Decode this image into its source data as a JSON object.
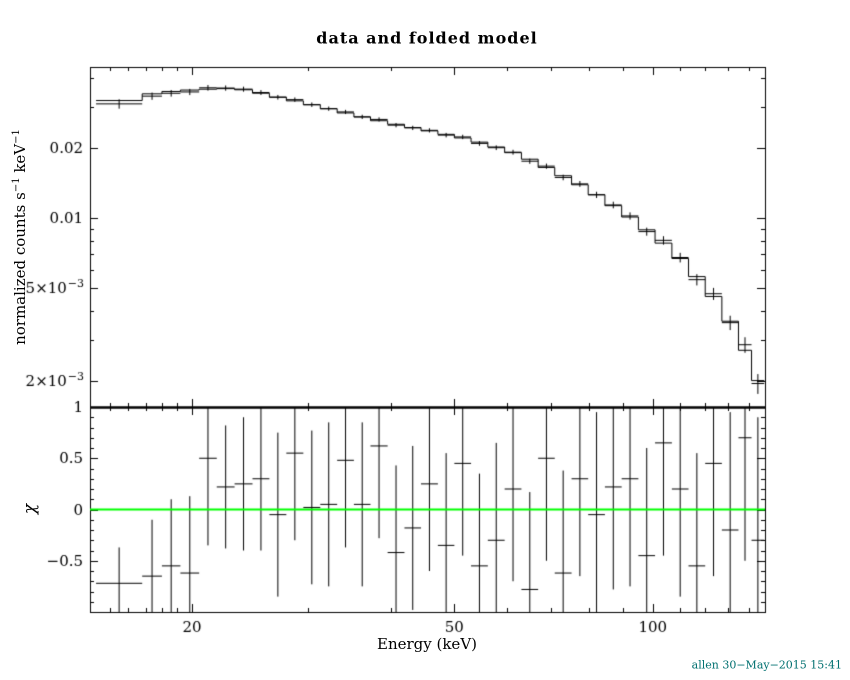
{
  "title": "data and folded model",
  "labels": {
    "top_ylabel_parts": [
      {
        "t": "normalized counts s"
      },
      {
        "t": "−1"
      },
      {
        "t": " keV"
      },
      {
        "t": "−1"
      }
    ],
    "bottom_ylabel": "χ",
    "xlabel": "Energy (keV)",
    "signature": "allen 30−May−2015 15:41"
  },
  "colors": {
    "frame": "#000000",
    "data": "#000000",
    "model": "#000000",
    "zero_line": "#00ff00",
    "signature": "#007070",
    "background": "#ffffff"
  },
  "chart_data": [
    {
      "type": "line",
      "name": "spectrum-panel",
      "title": "data and folded model",
      "ylabel": "normalized counts s−1 keV−1",
      "xlabel": "Energy (keV)",
      "xscale": "log",
      "yscale": "log",
      "xlim": [
        14.0,
        148.0
      ],
      "ylim": [
        0.00154,
        0.0446
      ],
      "grid": false,
      "legend": "none",
      "series": [
        {
          "name": "data",
          "style": "cross-errorbar"
        },
        {
          "name": "folded model",
          "style": "step-histogram"
        }
      ],
      "x_major_ticks": [
        {
          "v": 20,
          "label": "20"
        },
        {
          "v": 50,
          "label": "50"
        },
        {
          "v": 100,
          "label": "100"
        }
      ],
      "x_minor_ticks": [
        15,
        16,
        17,
        18,
        19,
        30,
        40,
        60,
        70,
        80,
        90,
        110,
        120,
        130,
        140
      ],
      "y_ticks": [
        {
          "v": 0.02,
          "mantissa": "0.02",
          "exp": null
        },
        {
          "v": 0.01,
          "mantissa": "0.01",
          "exp": null
        },
        {
          "v": 0.005,
          "mantissa": "5×10",
          "exp": "−3"
        },
        {
          "v": 0.002,
          "mantissa": "2×10",
          "exp": "−3"
        }
      ],
      "y_minor_ticks": [
        0.002,
        0.003,
        0.004,
        0.005,
        0.006,
        0.007,
        0.008,
        0.009,
        0.01,
        0.02,
        0.03,
        0.04
      ],
      "bin_edges_keV": [
        14.3,
        16.8,
        18.0,
        19.2,
        20.5,
        21.8,
        23.2,
        24.7,
        26.2,
        27.8,
        29.5,
        31.3,
        33.2,
        35.2,
        37.3,
        39.6,
        42.0,
        44.5,
        47.2,
        50.0,
        53.0,
        56.2,
        59.6,
        63.2,
        67.0,
        71.0,
        75.3,
        79.8,
        84.6,
        89.7,
        95.1,
        100.8,
        106.9,
        113.3,
        120.1,
        127.3,
        134.9,
        141.2,
        147.6
      ],
      "model_rate": [
        0.032,
        0.0342,
        0.035,
        0.0355,
        0.0358,
        0.036,
        0.0356,
        0.0344,
        0.0331,
        0.0319,
        0.0307,
        0.0295,
        0.0283,
        0.0272,
        0.0262,
        0.0253,
        0.0245,
        0.0237,
        0.0229,
        0.0221,
        0.0212,
        0.0202,
        0.0191,
        0.0179,
        0.0165,
        0.0152,
        0.0139,
        0.0126,
        0.0113,
        0.0101,
        0.0089,
        0.0078,
        0.0067,
        0.0056,
        0.0046,
        0.0036,
        0.0027,
        0.002
      ],
      "data_rel_err": [
        0.045,
        0.035,
        0.032,
        0.03,
        0.028,
        0.026,
        0.025,
        0.024,
        0.023,
        0.022,
        0.022,
        0.021,
        0.021,
        0.021,
        0.021,
        0.021,
        0.021,
        0.021,
        0.022,
        0.022,
        0.023,
        0.023,
        0.024,
        0.025,
        0.026,
        0.027,
        0.029,
        0.031,
        0.033,
        0.036,
        0.039,
        0.043,
        0.048,
        0.054,
        0.061,
        0.07,
        0.081,
        0.095
      ],
      "note": "data_rate[i] = model_rate[i] * (1 + chi[i] * data_rel_err[i]) using chi from residual panel"
    },
    {
      "type": "scatter",
      "name": "residuals-panel",
      "ylabel": "χ",
      "yscale": "linear",
      "ylim": [
        -1,
        1
      ],
      "zero_line_color": "#00ff00",
      "y_ticks": [
        {
          "v": 1,
          "label": "1"
        },
        {
          "v": 0.5,
          "label": "0.5"
        },
        {
          "v": 0,
          "label": "0"
        },
        {
          "v": -0.5,
          "label": "−0.5"
        }
      ],
      "y_minor_step": 0.1,
      "chi": [
        -0.72,
        -0.65,
        -0.55,
        -0.62,
        0.5,
        0.22,
        0.25,
        0.3,
        -0.05,
        0.55,
        0.02,
        0.05,
        0.48,
        0.05,
        0.62,
        -0.42,
        -0.18,
        0.25,
        -0.35,
        0.45,
        -0.55,
        -0.3,
        0.2,
        -0.78,
        0.5,
        -0.62,
        0.3,
        -0.05,
        0.22,
        0.3,
        -0.45,
        0.65,
        0.2,
        -0.55,
        0.45,
        -0.2,
        0.7,
        -0.3
      ],
      "chi_err": [
        0.35,
        0.55,
        0.65,
        0.75,
        0.85,
        0.6,
        0.65,
        0.7,
        0.8,
        0.85,
        0.75,
        0.8,
        0.85,
        0.8,
        0.9,
        0.85,
        0.8,
        0.85,
        0.9,
        0.9,
        0.9,
        0.95,
        0.9,
        0.95,
        1.0,
        1.0,
        0.95,
        1.0,
        1.0,
        1.05,
        1.05,
        1.1,
        1.05,
        1.1,
        1.1,
        1.15,
        1.2,
        1.2
      ]
    }
  ]
}
